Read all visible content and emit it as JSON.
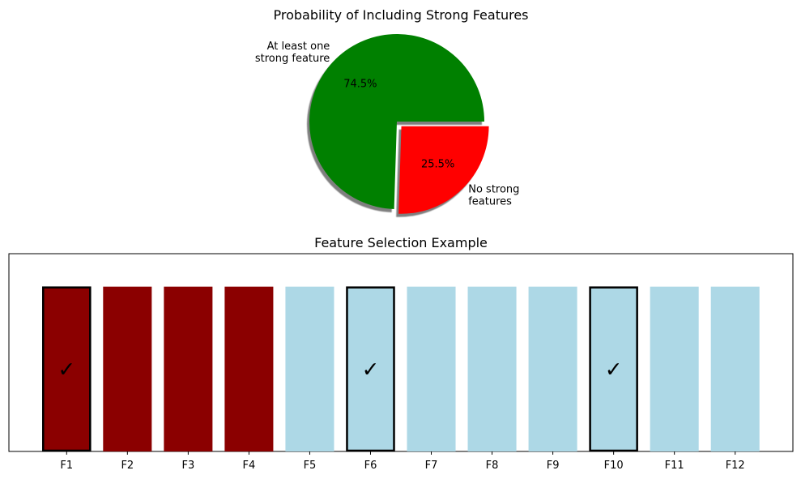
{
  "chart_data": [
    {
      "type": "pie",
      "title": "Probability of Including Strong Features",
      "slices": [
        {
          "label": "At least one\nstrong feature",
          "value": 74.5,
          "pct_label": "74.5%",
          "color": "#008000",
          "explode": false
        },
        {
          "label": "No strong\nfeatures",
          "value": 25.5,
          "pct_label": "25.5%",
          "color": "#ff0000",
          "explode": true
        }
      ],
      "shadow": true,
      "start_angle_deg": 0
    },
    {
      "type": "bar",
      "title": "Feature Selection Example",
      "categories": [
        "F1",
        "F2",
        "F3",
        "F4",
        "F5",
        "F6",
        "F7",
        "F8",
        "F9",
        "F10",
        "F11",
        "F12"
      ],
      "values": [
        1,
        1,
        1,
        1,
        1,
        1,
        1,
        1,
        1,
        1,
        1,
        1
      ],
      "colors": [
        "#8b0000",
        "#8b0000",
        "#8b0000",
        "#8b0000",
        "#add8e6",
        "#add8e6",
        "#add8e6",
        "#add8e6",
        "#add8e6",
        "#add8e6",
        "#add8e6",
        "#add8e6"
      ],
      "selected": [
        true,
        false,
        false,
        false,
        false,
        true,
        false,
        false,
        false,
        true,
        false,
        false
      ],
      "check_mark": "✓",
      "ylim": [
        0,
        1.2
      ],
      "yticks_visible": false,
      "grid": false
    }
  ]
}
